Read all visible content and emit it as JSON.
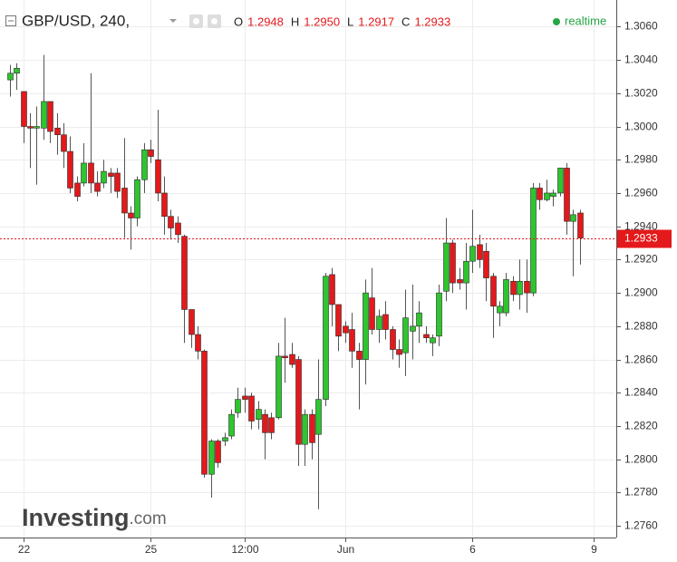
{
  "chart_data": {
    "type": "candlestick",
    "title": "GBP/USD, 240,",
    "ohlc_labels": [
      "O",
      "H",
      "L",
      "C"
    ],
    "header_values": [
      "1.2948",
      "1.2950",
      "1.2917",
      "1.2933"
    ],
    "status": "realtime",
    "logo": "Investing",
    "logo_suffix": ".com",
    "price_label": "1.2933",
    "up_color": "#2ec52e",
    "down_color": "#e3191b",
    "grid": true,
    "categories": [
      null,
      null,
      "22",
      null,
      null,
      null,
      null,
      null,
      null,
      null,
      null,
      null,
      null,
      null,
      null,
      null,
      null,
      null,
      null,
      null,
      null,
      "25",
      null,
      null,
      null,
      null,
      null,
      null,
      null,
      null,
      null,
      null,
      null,
      null,
      null,
      "12:00",
      null,
      null,
      null,
      null,
      null,
      null,
      null,
      null,
      null,
      null,
      null,
      null,
      null,
      null,
      "Jun",
      null,
      null,
      null,
      null,
      null,
      null,
      null,
      null,
      null,
      null,
      null,
      null,
      null,
      null,
      null,
      null,
      null,
      null,
      "6",
      null,
      null,
      null,
      null,
      null,
      null,
      null,
      null,
      null,
      null,
      null,
      null,
      null,
      null,
      null,
      null,
      null,
      "9"
    ],
    "open": [
      1.3028,
      1.3032,
      1.3021,
      1.3,
      1.2999,
      1.2999,
      1.3015,
      1.2999,
      1.2995,
      1.2985,
      1.2966,
      1.2966,
      1.2978,
      1.2966,
      1.2966,
      1.2972,
      1.2972,
      1.2963,
      1.2948,
      1.2945,
      1.2968,
      1.2986,
      1.298,
      1.296,
      1.2946,
      1.2942,
      1.2934,
      1.289,
      1.2875,
      1.2865,
      1.2791,
      1.2811,
      1.2811,
      1.2814,
      1.2828,
      1.2838,
      1.2838,
      1.2824,
      1.2827,
      1.2825,
      1.2825,
      1.2862,
      1.2863,
      1.286,
      1.2809,
      1.2827,
      1.2815,
      1.2836,
      1.2911,
      1.2893,
      1.288,
      1.2878,
      1.2865,
      1.286,
      1.2897,
      1.2878,
      1.2887,
      1.2878,
      1.2866,
      1.2864,
      1.2877,
      1.288,
      1.2875,
      1.287,
      1.2874,
      1.2901,
      1.293,
      1.2908,
      1.2906,
      1.2919,
      1.2929,
      1.2925,
      1.291,
      1.2888,
      1.2888,
      1.2907,
      1.2899,
      1.2907,
      1.29,
      1.2963,
      1.2956,
      1.2958,
      1.296,
      1.2975,
      1.2943,
      1.2948,
      null,
      null
    ],
    "high": [
      1.3037,
      1.3038,
      1.3021,
      1.3008,
      1.3012,
      1.3043,
      1.3015,
      1.3008,
      1.3002,
      1.2994,
      1.297,
      1.299,
      1.3032,
      1.2973,
      1.298,
      1.2975,
      1.2975,
      1.2993,
      1.2952,
      1.297,
      1.299,
      1.2992,
      1.301,
      1.297,
      1.295,
      1.2946,
      1.2935,
      1.289,
      1.288,
      1.2866,
      1.2812,
      1.2812,
      1.2816,
      1.283,
      1.2843,
      1.2843,
      1.284,
      1.2835,
      1.283,
      1.2828,
      1.287,
      1.2885,
      1.287,
      1.2862,
      1.283,
      1.283,
      1.286,
      1.2912,
      1.2915,
      1.2893,
      1.2883,
      1.2888,
      1.287,
      1.2908,
      1.2915,
      1.289,
      1.2895,
      1.288,
      1.2872,
      1.2902,
      1.2905,
      1.2895,
      1.288,
      1.2875,
      1.2905,
      1.2945,
      1.2932,
      1.2915,
      1.293,
      1.295,
      1.2935,
      1.293,
      1.2912,
      1.2895,
      1.2912,
      1.291,
      1.292,
      1.292,
      1.2966,
      1.2966,
      1.2968,
      1.2962,
      1.2975,
      1.2978,
      1.295,
      1.295,
      null,
      null
    ],
    "low": [
      1.3018,
      1.3022,
      1.299,
      1.2975,
      1.2965,
      1.2992,
      1.299,
      1.2983,
      1.2975,
      1.296,
      1.2955,
      1.2964,
      1.296,
      1.2958,
      1.2963,
      1.296,
      1.2957,
      1.2933,
      1.2926,
      1.294,
      1.296,
      1.2978,
      1.2955,
      1.2935,
      1.2932,
      1.293,
      1.287,
      1.2867,
      1.286,
      1.2789,
      1.2777,
      1.2795,
      1.2808,
      1.2812,
      1.2825,
      1.2828,
      1.2818,
      1.2818,
      1.28,
      1.2812,
      1.2824,
      1.2846,
      1.2855,
      1.2796,
      1.2796,
      1.28,
      1.277,
      1.2832,
      1.288,
      1.2865,
      1.287,
      1.2855,
      1.283,
      1.2845,
      1.2875,
      1.287,
      1.2872,
      1.286,
      1.2855,
      1.285,
      1.286,
      1.287,
      1.287,
      1.2862,
      1.2868,
      1.2895,
      1.29,
      1.2902,
      1.289,
      1.2912,
      1.2915,
      1.2895,
      1.2873,
      1.288,
      1.2886,
      1.2895,
      1.289,
      1.2888,
      1.2898,
      1.295,
      1.2955,
      1.2952,
      1.2958,
      1.2935,
      1.291,
      1.2917,
      null,
      null
    ],
    "close": [
      1.3032,
      1.3035,
      1.3,
      1.2999,
      1.3,
      1.3015,
      1.2997,
      1.2995,
      1.2985,
      1.2963,
      1.2958,
      1.2978,
      1.2966,
      1.2961,
      1.2973,
      1.297,
      1.2961,
      1.2948,
      1.2945,
      1.2968,
      1.2986,
      1.2982,
      1.296,
      1.2946,
      1.2939,
      1.2935,
      1.289,
      1.2875,
      1.2865,
      1.2791,
      1.2811,
      1.2798,
      1.2813,
      1.2827,
      1.2836,
      1.2836,
      1.2823,
      1.283,
      1.2816,
      1.2816,
      1.2862,
      1.2861,
      1.2857,
      1.2809,
      1.2827,
      1.281,
      1.2836,
      1.291,
      1.2893,
      1.2874,
      1.2876,
      1.2865,
      1.286,
      1.29,
      1.2878,
      1.2886,
      1.2878,
      1.2866,
      1.2863,
      1.2885,
      1.288,
      1.2888,
      1.2873,
      1.2873,
      1.29,
      1.293,
      1.2906,
      1.2906,
      1.2919,
      1.2928,
      1.292,
      1.2909,
      1.2892,
      1.2892,
      1.2908,
      1.2899,
      1.2907,
      1.29,
      1.2963,
      1.2956,
      1.296,
      1.296,
      1.2975,
      1.2943,
      1.2947,
      1.2933,
      null,
      null
    ],
    "ylim": [
      1.2753,
      1.3076
    ],
    "yticks": [
      {
        "value": 1.276,
        "label": "1.2760"
      },
      {
        "value": 1.278,
        "label": "1.2780"
      },
      {
        "value": 1.28,
        "label": "1.2800"
      },
      {
        "value": 1.282,
        "label": "1.2820"
      },
      {
        "value": 1.284,
        "label": "1.2840"
      },
      {
        "value": 1.286,
        "label": "1.2860"
      },
      {
        "value": 1.288,
        "label": "1.2880"
      },
      {
        "value": 1.29,
        "label": "1.2900"
      },
      {
        "value": 1.292,
        "label": "1.2920"
      },
      {
        "value": 1.294,
        "label": "1.2940"
      },
      {
        "value": 1.296,
        "label": "1.2960"
      },
      {
        "value": 1.298,
        "label": "1.2980"
      },
      {
        "value": 1.3,
        "label": "1.3000"
      },
      {
        "value": 1.302,
        "label": "1.3020"
      },
      {
        "value": 1.304,
        "label": "1.3040"
      },
      {
        "value": 1.306,
        "label": "1.3060"
      }
    ]
  }
}
